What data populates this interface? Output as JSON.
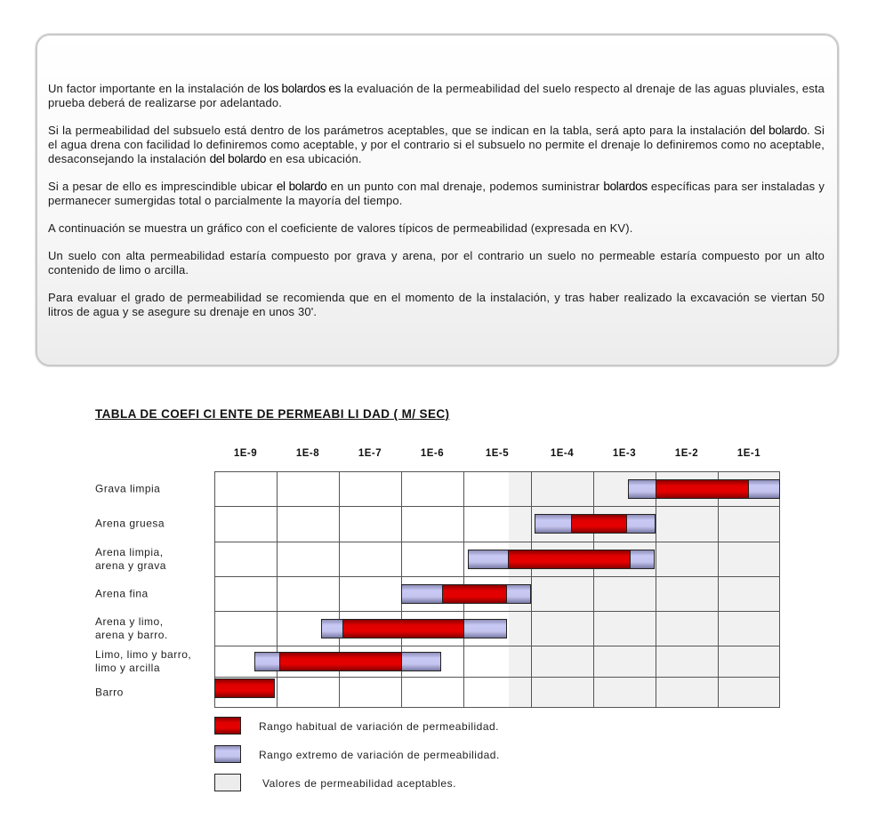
{
  "intro": {
    "paragraphs": [
      [
        {
          "t": "Un factor importante en la instalación de "
        },
        {
          "t": "los bolardos es",
          "b": true
        },
        {
          "t": " la evaluación de la permeabilidad del suelo respecto al drenaje de las aguas pluviales, esta prueba deberá de realizarse por adelantado."
        }
      ],
      [
        {
          "t": "Si la permeabilidad del subsuelo está dentro de los parámetros aceptables, que se indican en la tabla, será apto para la instalación  "
        },
        {
          "t": "del bolardo",
          "b": true
        },
        {
          "t": ". Si el agua drena con facilidad lo definiremos como aceptable, y por el contrario si el subsuelo no permite el drenaje lo definiremos como no aceptable, desaconsejando la instalación "
        },
        {
          "t": "del bolardo",
          "b": true
        },
        {
          "t": "  en esa ubicación."
        }
      ],
      [
        {
          "t": "Si a pesar de ello es imprescindible ubicar "
        },
        {
          "t": "el bolardo",
          "b": true
        },
        {
          "t": " en un punto con mal drenaje, podemos suministrar "
        },
        {
          "t": "bolardos",
          "b": true
        },
        {
          "t": " específicas para ser instaladas y permanecer sumergidas total o parcialmente la mayoría del tiempo."
        }
      ],
      [
        {
          "t": "A continuación se muestra un gráfico con el coeficiente de valores típicos de permeabilidad (expresada en KV)."
        }
      ],
      [
        {
          "t": "Un suelo con alta permeabilidad estaría compuesto por grava y arena, por el contrario un suelo no permeable estaría compuesto por un alto contenido de limo o arcilla."
        }
      ],
      [
        {
          "t": "Para evaluar el grado de permeabilidad se recomienda que en el momento de la instalación, y tras haber realizado la excavación se viertan 50 litros de agua y se asegure su drenaje en unos 30'."
        }
      ]
    ]
  },
  "chart_data": {
    "type": "table",
    "title": "TABLA DE COEFICIENTE DE PERMEABILIDAD (M/SEC)",
    "x_scale": "log10",
    "column_labels": [
      "1E-9",
      "1E-8",
      "1E-7",
      "1E-6",
      "1E-5",
      "1E-4",
      "1E-3",
      "1E-2",
      "1E-1"
    ],
    "acceptable_from_exponent": -4.84,
    "rows": [
      {
        "label": "Grava limpia",
        "extreme": [
          -2.94,
          -0.5
        ],
        "habitual": [
          -2.5,
          -1.0
        ]
      },
      {
        "label": "Arena gruesa",
        "extreme": [
          -4.45,
          -2.5
        ],
        "habitual": [
          -3.86,
          -2.95
        ]
      },
      {
        "label": "Arena limpia,\narena y grava",
        "extreme": [
          -5.43,
          -2.52
        ],
        "habitual": [
          -4.84,
          -2.9
        ]
      },
      {
        "label": "Arena fina",
        "extreme": [
          -6.5,
          -4.5
        ],
        "habitual": [
          -5.85,
          -4.85
        ]
      },
      {
        "label": "Arena y limo,\narena y barro.",
        "extreme": [
          -7.78,
          -4.85
        ],
        "habitual": [
          -7.45,
          -5.49
        ]
      },
      {
        "label": "Limo, limo y barro,\nlimo y arcilla",
        "extreme": [
          -8.86,
          -5.85
        ],
        "habitual": [
          -8.46,
          -6.49
        ]
      },
      {
        "label": "Barro",
        "extreme": null,
        "habitual": [
          -9.5,
          -8.53
        ]
      }
    ],
    "legend": [
      {
        "label": "Rango habitual de variación de permeabilidad.",
        "color": "#e00000"
      },
      {
        "label": "Rango extremo de variación de permeabilidad.",
        "color": "#c4c4ef"
      },
      {
        "label": "Valores de permeabilidad aceptables.",
        "color": "#ececec"
      }
    ],
    "title_display": "TABLA DE COEFI CI ENTE DE PERMEABI LI DAD ( M/ SEC)"
  }
}
